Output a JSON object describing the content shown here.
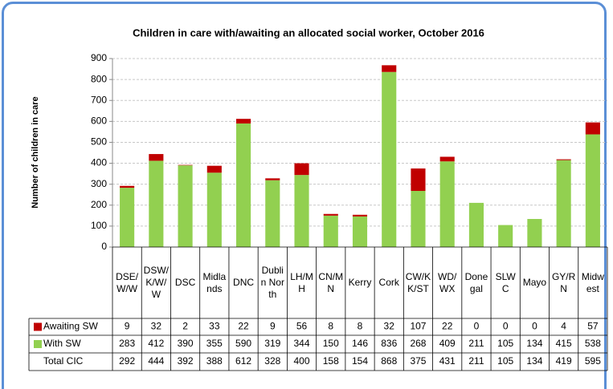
{
  "chart_data": {
    "type": "stacked_bar",
    "title": "Children in care with/awaiting  an allocated social worker, October 2016",
    "y_label": "Number of children in care",
    "categories": [
      "DSE/W/W",
      "DSW/K/W/W",
      "DSC",
      "Midlands",
      "DNC",
      "Dublin North",
      "LH/MH",
      "CN/MN",
      "Kerry",
      "Cork",
      "CW/KK/ST",
      "WD/WX",
      "Donegal",
      "SLWC",
      "Mayo",
      "GY/RN",
      "Midwest"
    ],
    "series": [
      {
        "name": "Awaiting SW",
        "color": "#c00000",
        "values": [
          9,
          32,
          2,
          33,
          22,
          9,
          56,
          8,
          8,
          32,
          107,
          22,
          0,
          0,
          0,
          4,
          57
        ]
      },
      {
        "name": "With SW",
        "color": "#92d050",
        "values": [
          283,
          412,
          390,
          355,
          590,
          319,
          344,
          150,
          146,
          836,
          268,
          409,
          211,
          105,
          134,
          415,
          538
        ]
      }
    ],
    "totals_label": "Total  CIC",
    "totals": [
      292,
      444,
      392,
      388,
      612,
      328,
      400,
      158,
      154,
      868,
      375,
      431,
      211,
      105,
      134,
      419,
      595
    ],
    "ylim": [
      0,
      900
    ],
    "yticks": [
      0,
      100,
      200,
      300,
      400,
      500,
      600,
      700,
      800,
      900
    ],
    "grid": true
  }
}
